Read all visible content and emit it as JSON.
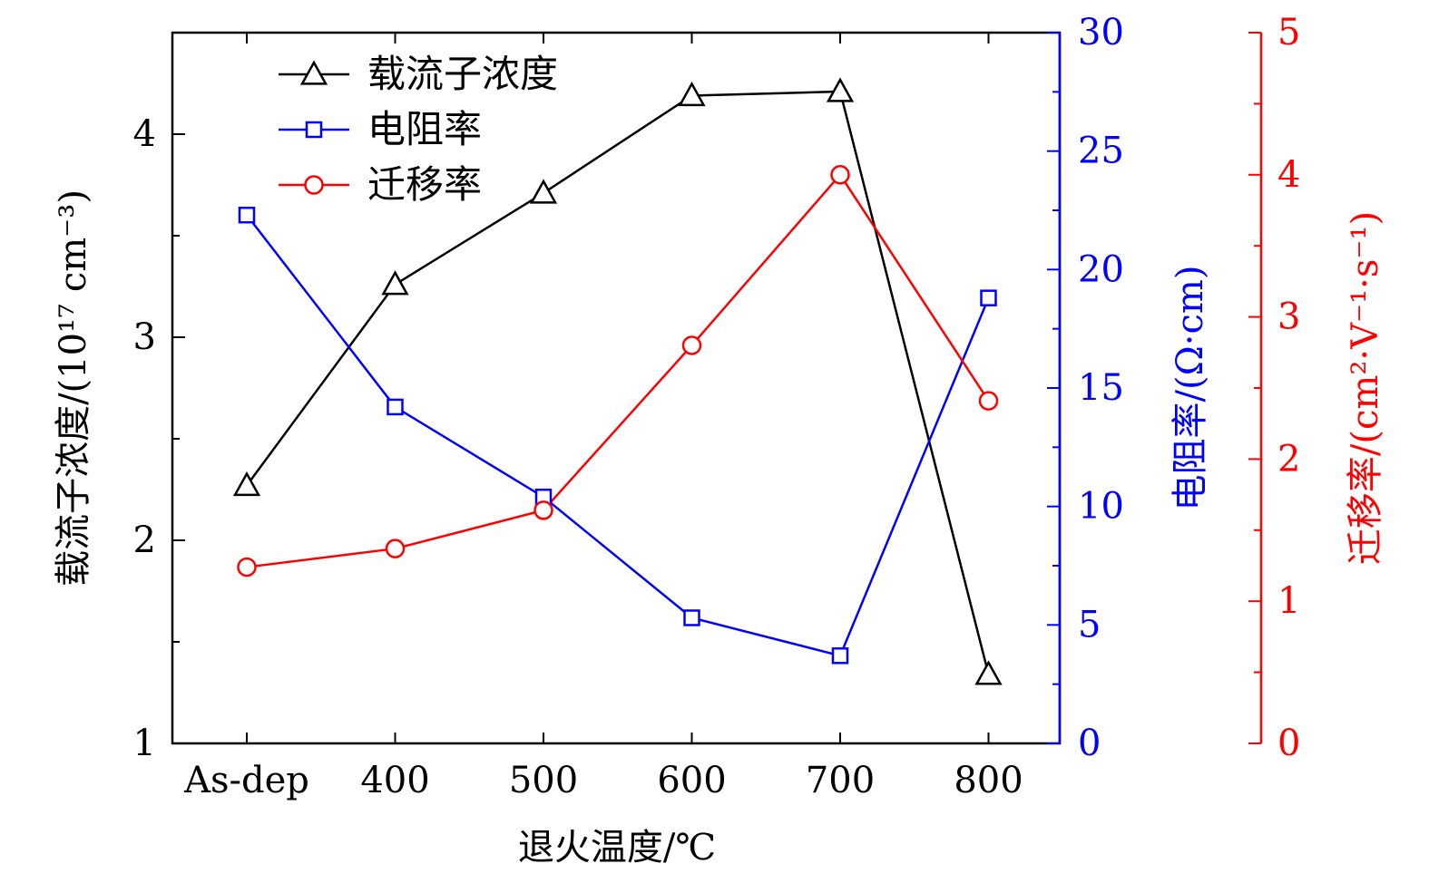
{
  "chart_data": {
    "type": "line",
    "categories": [
      "As-dep",
      "400",
      "500",
      "600",
      "700",
      "800"
    ],
    "xlabel": "退火温度/℃",
    "axes": {
      "left": {
        "label": "载流子浓度/(10¹⁷ cm⁻³)",
        "ylim": [
          1,
          4.5
        ],
        "ticks": [
          1,
          2,
          3,
          4
        ],
        "minor_step": 0.5,
        "color": "#000000"
      },
      "right1": {
        "label": "电阻率/(Ω·cm)",
        "ylim": [
          0,
          30
        ],
        "ticks": [
          0,
          5,
          10,
          15,
          20,
          25,
          30
        ],
        "minor_step": 2.5,
        "color": "#0000ff"
      },
      "right2": {
        "label": "迁移率/(cm²·V⁻¹·s⁻¹)",
        "ylim": [
          0,
          5
        ],
        "ticks": [
          0,
          1,
          2,
          3,
          4,
          5
        ],
        "minor_step": 0.5,
        "color": "#ff0000"
      }
    },
    "series": [
      {
        "name": "载流子浓度",
        "axis": "left",
        "marker": "triangle",
        "color": "#000000",
        "values": [
          2.27,
          3.26,
          3.71,
          4.19,
          4.21,
          1.34
        ]
      },
      {
        "name": "电阻率",
        "axis": "right1",
        "marker": "square",
        "color": "#0000ff",
        "values": [
          22.3,
          14.2,
          10.4,
          5.3,
          3.7,
          18.8
        ]
      },
      {
        "name": "迁移率",
        "axis": "right2",
        "marker": "circle",
        "color": "#ff0000",
        "values": [
          1.24,
          1.37,
          1.64,
          2.8,
          4.0,
          2.41
        ]
      }
    ],
    "legend": {
      "position": "top-left"
    },
    "grid": false
  }
}
